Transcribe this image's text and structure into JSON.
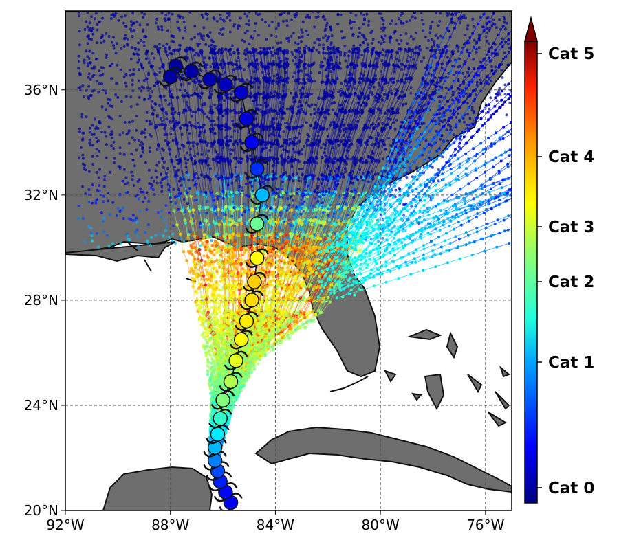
{
  "map": {
    "x_ticks": [
      "92°W",
      "88°W",
      "84°W",
      "80°W",
      "76°W"
    ],
    "y_ticks": [
      "36°N",
      "32°N",
      "28°N",
      "24°N",
      "20°N"
    ],
    "extent": {
      "lon_min": -92,
      "lon_max": -75,
      "lat_min": 20,
      "lat_max": 39
    },
    "gridlines": true,
    "land_color": "#6e6e6e",
    "ocean_color": "#ffffff",
    "coast_color": "#111111"
  },
  "colorbar": {
    "colormap": "jet",
    "extend": "max",
    "labels": [
      "Cat 5",
      "Cat 4",
      "Cat 3",
      "Cat 2",
      "Cat 1",
      "Cat 0"
    ],
    "levels": [
      5,
      4,
      3,
      2,
      1,
      0
    ]
  },
  "central_track": {
    "description_icon": "hurricane-symbol-icon",
    "points": [
      {
        "lon": -85.7,
        "lat": 20.3,
        "cat": 0.3
      },
      {
        "lon": -85.9,
        "lat": 20.7,
        "cat": 0.35
      },
      {
        "lon": -86.1,
        "lat": 21.1,
        "cat": 0.45
      },
      {
        "lon": -86.2,
        "lat": 21.5,
        "cat": 0.6
      },
      {
        "lon": -86.3,
        "lat": 21.9,
        "cat": 0.8
      },
      {
        "lon": -86.3,
        "lat": 22.4,
        "cat": 1.0
      },
      {
        "lon": -86.2,
        "lat": 22.9,
        "cat": 1.3
      },
      {
        "lon": -86.1,
        "lat": 23.5,
        "cat": 1.7
      },
      {
        "lon": -86.0,
        "lat": 24.2,
        "cat": 2.2
      },
      {
        "lon": -85.7,
        "lat": 24.9,
        "cat": 2.6
      },
      {
        "lon": -85.5,
        "lat": 25.7,
        "cat": 3.0
      },
      {
        "lon": -85.3,
        "lat": 26.5,
        "cat": 3.2
      },
      {
        "lon": -85.1,
        "lat": 27.2,
        "cat": 3.3
      },
      {
        "lon": -84.9,
        "lat": 28.0,
        "cat": 3.4
      },
      {
        "lon": -84.8,
        "lat": 28.7,
        "cat": 3.5
      },
      {
        "lon": -84.7,
        "lat": 29.6,
        "cat": 3.2
      },
      {
        "lon": -84.7,
        "lat": 30.9,
        "cat": 2.0
      },
      {
        "lon": -84.5,
        "lat": 32.0,
        "cat": 1.0
      },
      {
        "lon": -84.7,
        "lat": 33.0,
        "cat": 0.5
      },
      {
        "lon": -84.9,
        "lat": 34.0,
        "cat": 0.3
      },
      {
        "lon": -85.1,
        "lat": 34.9,
        "cat": 0.2
      },
      {
        "lon": -85.3,
        "lat": 35.9,
        "cat": 0.15
      },
      {
        "lon": -85.9,
        "lat": 36.2,
        "cat": 0.1
      },
      {
        "lon": -86.5,
        "lat": 36.4,
        "cat": 0.05
      },
      {
        "lon": -87.2,
        "lat": 36.7,
        "cat": 0.02
      },
      {
        "lon": -87.8,
        "lat": 36.9,
        "cat": 0.0
      },
      {
        "lon": -88.0,
        "lat": 36.5,
        "cat": 0.0
      }
    ]
  }
}
